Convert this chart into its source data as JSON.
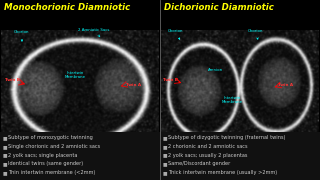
{
  "left_title": "Monochorionic Diamniotic",
  "right_title": "Dichorionic Diamniotic",
  "left_bullets": [
    "Subtype of monozygotic twinning",
    "Single chorionic and 2 amniotic sacs",
    "2 yolk sacs; single placenta",
    "Identical twins (same gender)",
    "Thin intertwin membrane (<2mm)"
  ],
  "right_bullets": [
    "Subtype of dizygotic twinning (fraternal twins)",
    "2 chorionic and 2 amniotic sacs",
    "2 yolk sacs; usually 2 placentas",
    "Same/Discordant gender",
    "Thick intertwin membrane (usually >2mm)"
  ],
  "bg_color": "#000000",
  "title_color": "#FFFF00",
  "bullet_color": "#CCCCCC",
  "text_bg_color": "#1a1a1a"
}
